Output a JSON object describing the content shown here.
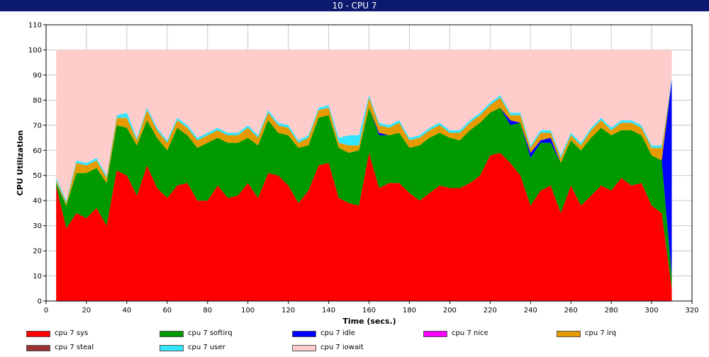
{
  "window": {
    "title": "10 - CPU 7"
  },
  "chart_data": {
    "type": "area",
    "stacked": true,
    "title": "",
    "xlabel": "Time (secs.)",
    "ylabel": "CPU Utilization",
    "xlim": [
      0,
      320
    ],
    "ylim": [
      0,
      110
    ],
    "xticks": [
      0,
      20,
      40,
      60,
      80,
      100,
      120,
      140,
      160,
      180,
      200,
      220,
      240,
      260,
      280,
      300,
      320
    ],
    "yticks": [
      0,
      10,
      20,
      30,
      40,
      50,
      60,
      70,
      80,
      90,
      100,
      110
    ],
    "grid": true,
    "legend_position": "bottom",
    "x": [
      5,
      10,
      15,
      20,
      25,
      30,
      35,
      40,
      45,
      50,
      55,
      60,
      65,
      70,
      75,
      80,
      85,
      90,
      95,
      100,
      105,
      110,
      115,
      120,
      125,
      130,
      135,
      140,
      145,
      150,
      155,
      160,
      165,
      170,
      175,
      180,
      185,
      190,
      195,
      200,
      205,
      210,
      215,
      220,
      225,
      230,
      235,
      240,
      245,
      250,
      255,
      260,
      265,
      270,
      275,
      280,
      285,
      290,
      295,
      300,
      305,
      310
    ],
    "series": [
      {
        "name": "cpu 7 sys",
        "color": "#ff0000",
        "values": [
          46,
          29,
          35,
          33,
          37,
          30,
          52,
          50,
          42,
          54,
          45,
          41,
          46,
          47,
          40,
          40,
          46,
          41,
          42,
          47,
          41,
          51,
          50,
          46,
          39,
          44,
          54,
          55,
          41,
          39,
          38,
          59,
          45,
          47,
          47,
          43,
          40,
          43,
          46,
          45,
          45,
          47,
          50,
          58,
          59,
          55,
          50,
          38,
          44,
          46,
          35,
          46,
          38,
          42,
          46,
          44,
          49,
          46,
          47,
          38,
          35,
          5
        ]
      },
      {
        "name": "cpu 7 softirq",
        "color": "#009900",
        "values": [
          1,
          9,
          16,
          18,
          16,
          17,
          18,
          19,
          20,
          18,
          20,
          19,
          23,
          19,
          21,
          23,
          19,
          22,
          21,
          18,
          21,
          21,
          17,
          20,
          22,
          18,
          19,
          19,
          20,
          20,
          22,
          18,
          21,
          19,
          20,
          18,
          22,
          22,
          21,
          20,
          19,
          21,
          21,
          17,
          18,
          15,
          21,
          19,
          19,
          17,
          20,
          18,
          22,
          23,
          23,
          22,
          19,
          22,
          19,
          20,
          21,
          5
        ]
      },
      {
        "name": "cpu 7 idle",
        "color": "#0000ff",
        "values": [
          0,
          0,
          0,
          0,
          0,
          0,
          0,
          0,
          0,
          0,
          0,
          0,
          0,
          0,
          0,
          0,
          0,
          0,
          0,
          0,
          0,
          0,
          0,
          0,
          0,
          0,
          0,
          0,
          0,
          0,
          0,
          0,
          1,
          0,
          0,
          0,
          0,
          0,
          0,
          0,
          0,
          0,
          0,
          0,
          0,
          2,
          0,
          2,
          1,
          2,
          0,
          0,
          0,
          0,
          0,
          0,
          0,
          0,
          0,
          0,
          0,
          78
        ]
      },
      {
        "name": "cpu 7 nice",
        "color": "#ff00ff",
        "values": [
          0,
          0,
          0,
          0,
          0,
          0,
          0,
          0,
          0,
          0,
          0,
          0,
          0,
          0,
          0,
          0,
          0,
          0,
          0,
          0,
          0,
          0,
          0,
          0,
          0,
          0,
          0,
          0,
          0,
          0,
          0,
          0,
          0,
          0,
          0,
          0,
          0,
          0,
          0,
          0,
          0,
          0,
          0,
          0,
          0,
          0,
          0,
          0,
          0,
          0,
          0,
          0,
          0,
          0,
          0,
          0,
          0,
          0,
          0,
          0,
          0,
          0
        ]
      },
      {
        "name": "cpu 7 irq",
        "color": "#e69a00",
        "values": [
          1,
          1,
          4,
          3,
          3,
          2,
          3,
          4,
          2,
          4,
          3,
          3,
          3,
          3,
          3,
          3,
          3,
          3,
          3,
          4,
          3,
          3,
          3,
          3,
          2,
          3,
          3,
          3,
          2,
          3,
          2,
          4,
          3,
          3,
          4,
          3,
          3,
          3,
          3,
          2,
          3,
          3,
          3,
          3,
          4,
          2,
          3,
          2,
          3,
          2,
          2,
          2,
          2,
          3,
          3,
          2,
          3,
          3,
          3,
          3,
          5,
          0
        ]
      },
      {
        "name": "cpu 7 steal",
        "color": "#993333",
        "values": [
          0,
          0,
          0,
          0,
          0,
          0,
          0,
          0,
          0,
          0,
          0,
          0,
          0,
          0,
          0,
          0,
          0,
          0,
          0,
          0,
          0,
          0,
          0,
          0,
          0,
          0,
          0,
          0,
          0,
          0,
          0,
          0,
          0,
          0,
          0,
          0,
          0,
          0,
          0,
          0,
          0,
          0,
          0,
          0,
          0,
          0,
          0,
          0,
          0,
          0,
          0,
          0,
          0,
          0,
          0,
          0,
          0,
          0,
          0,
          0,
          0,
          0
        ]
      },
      {
        "name": "cpu 7 user",
        "color": "#33e5ff",
        "values": [
          1,
          1,
          1,
          1,
          1,
          1,
          1,
          2,
          1,
          1,
          1,
          1,
          1,
          1,
          1,
          1,
          1,
          1,
          1,
          1,
          1,
          1,
          1,
          1,
          1,
          1,
          1,
          1,
          2,
          4,
          4,
          1,
          1,
          1,
          1,
          1,
          1,
          1,
          1,
          1,
          1,
          1,
          1,
          1,
          1,
          1,
          1,
          1,
          1,
          1,
          1,
          1,
          1,
          1,
          1,
          1,
          1,
          1,
          1,
          1,
          1,
          1
        ]
      },
      {
        "name": "cpu 7 iowait",
        "color": "#ffcccc",
        "values": [
          51,
          60,
          44,
          45,
          43,
          50,
          26,
          25,
          35,
          23,
          31,
          36,
          27,
          30,
          35,
          33,
          31,
          33,
          33,
          30,
          34,
          24,
          29,
          30,
          36,
          34,
          23,
          22,
          35,
          34,
          34,
          18,
          29,
          30,
          28,
          35,
          34,
          31,
          29,
          32,
          32,
          28,
          25,
          21,
          18,
          25,
          25,
          38,
          32,
          32,
          42,
          33,
          37,
          31,
          27,
          31,
          28,
          28,
          30,
          38,
          38,
          11
        ]
      }
    ]
  }
}
